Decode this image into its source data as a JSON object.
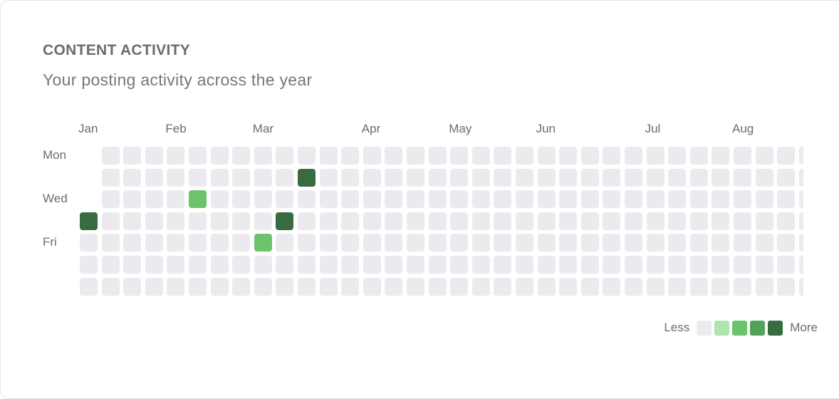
{
  "header": {
    "title": "CONTENT ACTIVITY",
    "subtitle": "Your posting activity across the year"
  },
  "chart_data": {
    "type": "heatmap",
    "months": [
      {
        "label": "Jan",
        "week": 0
      },
      {
        "label": "Feb",
        "week": 4
      },
      {
        "label": "Mar",
        "week": 8
      },
      {
        "label": "Apr",
        "week": 13
      },
      {
        "label": "May",
        "week": 17
      },
      {
        "label": "Jun",
        "week": 21
      },
      {
        "label": "Jul",
        "week": 26
      },
      {
        "label": "Aug",
        "week": 30
      }
    ],
    "day_labels": [
      {
        "label": "Mon",
        "day": 0
      },
      {
        "label": "Wed",
        "day": 2
      },
      {
        "label": "Fri",
        "day": 4
      }
    ],
    "weeks": 34,
    "days_per_week": 7,
    "start_day_in_first_week": 3,
    "levels": 5,
    "active_cells": [
      {
        "week": 0,
        "day": 3,
        "level": 4
      },
      {
        "week": 5,
        "day": 2,
        "level": 2
      },
      {
        "week": 8,
        "day": 4,
        "level": 2
      },
      {
        "week": 9,
        "day": 3,
        "level": 4
      },
      {
        "week": 10,
        "day": 1,
        "level": 4
      }
    ],
    "level_colors": [
      "#ebebef",
      "#ade5ad",
      "#6bc46b",
      "#51a35a",
      "#386b40"
    ]
  },
  "legend": {
    "less_label": "Less",
    "more_label": "More"
  }
}
